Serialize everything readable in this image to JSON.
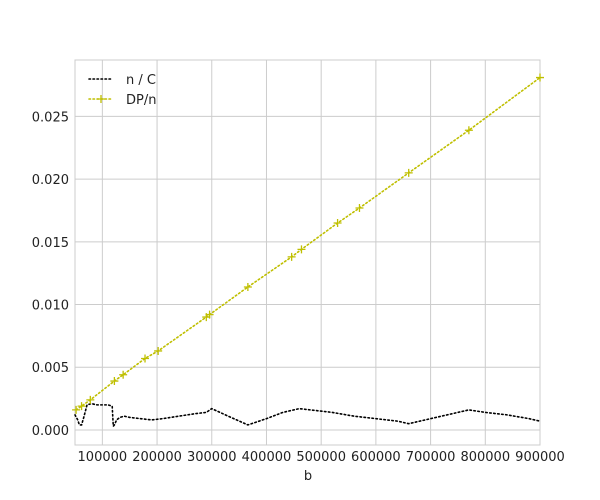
{
  "chart_data": {
    "type": "line",
    "title": "",
    "xlabel": "b",
    "ylabel": "",
    "xlim": [
      50000,
      900000
    ],
    "ylim": [
      -0.0012,
      0.0295
    ],
    "xticks": [
      100000,
      200000,
      300000,
      400000,
      500000,
      600000,
      700000,
      800000,
      900000
    ],
    "xtick_labels": [
      "100000",
      "200000",
      "300000",
      "400000",
      "500000",
      "600000",
      "700000",
      "800000",
      "900000"
    ],
    "yticks": [
      0.0,
      0.005,
      0.01,
      0.015,
      0.02,
      0.025
    ],
    "ytick_labels": [
      "0.000",
      "0.005",
      "0.010",
      "0.015",
      "0.020",
      "0.025"
    ],
    "grid": true,
    "legend_position": "top-left",
    "series": [
      {
        "name": "n / C",
        "color": "#000000",
        "marker": "none",
        "x": [
          50000,
          55000,
          58000,
          62000,
          66000,
          72000,
          80000,
          90000,
          100000,
          110000,
          118000,
          120000,
          122000,
          126000,
          132000,
          140000,
          150000,
          170000,
          190000,
          210000,
          240000,
          270000,
          290000,
          300000,
          330000,
          366000,
          400000,
          430000,
          460000,
          480000,
          520000,
          560000,
          600000,
          640000,
          660000,
          700000,
          740000,
          770000,
          800000,
          840000,
          880000,
          900000
        ],
        "y": [
          0.0012,
          0.0008,
          0.0004,
          0.0004,
          0.001,
          0.002,
          0.0021,
          0.002,
          0.002,
          0.002,
          0.0019,
          0.0003,
          0.0004,
          0.0008,
          0.001,
          0.0011,
          0.001,
          0.0009,
          0.0008,
          0.0009,
          0.0011,
          0.0013,
          0.0014,
          0.0017,
          0.0011,
          0.0004,
          0.0009,
          0.0014,
          0.0017,
          0.0016,
          0.0014,
          0.0011,
          0.0009,
          0.0007,
          0.0005,
          0.0009,
          0.0013,
          0.0016,
          0.0014,
          0.0012,
          0.0009,
          0.0007
        ]
      },
      {
        "name": "DP/n",
        "color": "#bfbf00",
        "marker": "plus",
        "x": [
          52000,
          62000,
          78000,
          122000,
          138000,
          178000,
          202000,
          290000,
          296000,
          366000,
          446000,
          464000,
          530000,
          570000,
          660000,
          770000,
          900000
        ],
        "y": [
          0.0016,
          0.0019,
          0.0024,
          0.0039,
          0.0044,
          0.0057,
          0.0063,
          0.009,
          0.0092,
          0.0114,
          0.0138,
          0.0144,
          0.0165,
          0.0177,
          0.0205,
          0.0239,
          0.0281
        ]
      }
    ]
  }
}
